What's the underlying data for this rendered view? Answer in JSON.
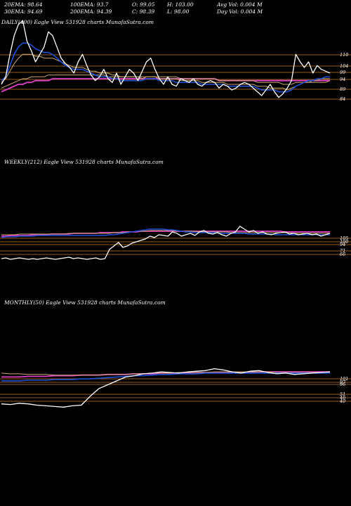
{
  "header": {
    "row1": [
      "20EMA: 98.64",
      "100EMA: 93.7",
      "O: 99.05",
      "H: 103.00",
      "Avg Vol: 0.004  M"
    ],
    "row2": [
      "30EMA: 94.69",
      "200EMA: 94.39",
      "C: 98.39",
      "L: 98.00",
      "Day Vol: 0.004  M"
    ]
  },
  "colors": {
    "background": "#000000",
    "price": "#ffffff",
    "ema_short": "#1f4fd6",
    "ema_200": "#e040c8",
    "ema_mid": "#c8a870",
    "level": "#c8782c",
    "text": "#ffffff"
  },
  "chart_data": [
    {
      "type": "line",
      "title": "DAILY(400) Eagle  View  531928 charts MunafaSutra.com",
      "y_levels": [
        "110",
        "104",
        "99",
        "94",
        "89",
        "84"
      ],
      "series": [
        {
          "role": "price",
          "values": [
            92,
            96,
            108,
            118,
            124,
            126,
            115,
            110,
            104,
            108,
            112,
            120,
            118,
            112,
            106,
            103,
            101,
            98,
            104,
            108,
            102,
            97,
            94,
            96,
            100,
            95,
            93,
            98,
            92,
            96,
            100,
            98,
            94,
            99,
            104,
            106,
            100,
            95,
            92,
            96,
            92,
            91,
            95,
            94,
            93,
            95,
            92,
            91,
            93,
            94,
            93,
            90,
            92,
            91,
            89,
            90,
            92,
            93,
            92,
            90,
            88,
            86,
            89,
            92,
            88,
            85,
            87,
            90,
            94,
            108,
            104,
            101,
            104,
            98,
            102,
            100,
            99,
            98
          ]
        },
        {
          "role": "ema-short",
          "values": [
            94,
            96,
            102,
            108,
            112,
            114,
            114,
            113,
            111,
            110,
            109,
            109,
            108,
            106,
            104,
            102,
            101,
            100,
            100,
            100,
            99,
            98,
            97,
            96,
            96,
            96,
            95,
            95,
            94,
            94,
            94,
            94,
            94,
            94,
            95,
            95,
            95,
            94,
            94,
            94,
            94,
            93,
            93,
            93,
            93,
            93,
            93,
            92,
            92,
            92,
            92,
            92,
            92,
            91,
            91,
            91,
            91,
            91,
            91,
            91,
            90,
            89,
            89,
            89,
            89,
            88,
            88,
            88,
            89,
            91,
            92,
            93,
            94,
            94,
            95,
            95,
            96,
            96
          ]
        },
        {
          "role": "ema-mid",
          "values": [
            93,
            95,
            99,
            103,
            106,
            108,
            108,
            108,
            107,
            107,
            106,
            106,
            106,
            105,
            104,
            103,
            102,
            101,
            101,
            101,
            100,
            99,
            99,
            98,
            98,
            98,
            97,
            97,
            96,
            96,
            96,
            96,
            96,
            95,
            96,
            96,
            96,
            95,
            95,
            95,
            95,
            95,
            94,
            94,
            94,
            94,
            94,
            93,
            93,
            93,
            93,
            93,
            93,
            92,
            92,
            92,
            92,
            92,
            92,
            92,
            91,
            91,
            91,
            90,
            90,
            90,
            90,
            89,
            90,
            91,
            92,
            93,
            93,
            94,
            94,
            95,
            95,
            95
          ]
        },
        {
          "role": "ema-long",
          "values": [
            90,
            91,
            92,
            93,
            94,
            95,
            95,
            96,
            96,
            96,
            96,
            97,
            97,
            97,
            97,
            97,
            97,
            97,
            97,
            97,
            97,
            97,
            97,
            97,
            97,
            96,
            96,
            96,
            96,
            96,
            96,
            96,
            96,
            96,
            96,
            96,
            96,
            96,
            96,
            96,
            96,
            96,
            95,
            95,
            95,
            95,
            95,
            95,
            95,
            95,
            95,
            94,
            94,
            94,
            94,
            94,
            94,
            94,
            94,
            94,
            93,
            93,
            93,
            93,
            93,
            93,
            92,
            92,
            92,
            93,
            93,
            93,
            93,
            93,
            93,
            93,
            93,
            94
          ]
        },
        {
          "role": "ema-200",
          "values": [
            88,
            89,
            90,
            91,
            92,
            92,
            93,
            93,
            94,
            94,
            94,
            94,
            95,
            95,
            95,
            95,
            95,
            95,
            95,
            95,
            95,
            95,
            95,
            95,
            95,
            95,
            95,
            95,
            95,
            95,
            95,
            95,
            95,
            95,
            95,
            95,
            95,
            95,
            95,
            95,
            95,
            95,
            95,
            95,
            95,
            95,
            95,
            95,
            95,
            95,
            95,
            94,
            94,
            94,
            94,
            94,
            94,
            94,
            94,
            94,
            94,
            94,
            94,
            94,
            94,
            94,
            94,
            94,
            94,
            94,
            94,
            94,
            94,
            94,
            94,
            94,
            94,
            94
          ]
        }
      ]
    },
    {
      "type": "line",
      "title": "WEEKLY(212) Eagle  View  531928 charts MunafaSutra.com",
      "y_levels": [
        "105",
        "100",
        "94",
        "71",
        "66"
      ],
      "series": [
        {
          "role": "price",
          "values": [
            62,
            63,
            61,
            62,
            63,
            62,
            61,
            62,
            61,
            62,
            63,
            62,
            61,
            62,
            63,
            64,
            62,
            63,
            62,
            61,
            62,
            63,
            61,
            62,
            75,
            80,
            85,
            78,
            80,
            84,
            86,
            88,
            90,
            94,
            92,
            96,
            95,
            94,
            100,
            98,
            94,
            96,
            98,
            95,
            100,
            102,
            98,
            97,
            99,
            96,
            94,
            98,
            100,
            108,
            104,
            100,
            102,
            98,
            100,
            97,
            96,
            98,
            99,
            100,
            97,
            98,
            96,
            97,
            98,
            96,
            97,
            94,
            96,
            98
          ]
        },
        {
          "role": "ema-short",
          "values": [
            92,
            93,
            93,
            93,
            94,
            94,
            94,
            94,
            95,
            95,
            95,
            95,
            95,
            95,
            95,
            95,
            95,
            95,
            95,
            95,
            95,
            95,
            95,
            95,
            96,
            96,
            97,
            98,
            99,
            100,
            101,
            102,
            103,
            104,
            104,
            104,
            104,
            103,
            103,
            102,
            101,
            100,
            100,
            99,
            99,
            99,
            99,
            99,
            99,
            98,
            98,
            98,
            98,
            98,
            98,
            97,
            97,
            97,
            97,
            97,
            97,
            96,
            96,
            96,
            96,
            96,
            96,
            96,
            96,
            96,
            96,
            96,
            96,
            96
          ]
        },
        {
          "role": "ema-mid",
          "values": [
            96,
            96,
            96,
            96,
            97,
            97,
            97,
            97,
            97,
            97,
            97,
            97,
            97,
            97,
            97,
            98,
            98,
            98,
            98,
            98,
            98,
            98,
            98,
            98,
            98,
            99,
            99,
            99,
            100,
            100,
            101,
            101,
            101,
            102,
            102,
            102,
            102,
            102,
            102,
            101,
            101,
            101,
            101,
            101,
            100,
            100,
            100,
            100,
            100,
            100,
            100,
            99,
            99,
            99,
            99,
            99,
            99,
            99,
            99,
            99,
            99,
            99,
            99,
            99,
            99,
            98,
            98,
            98,
            98,
            98,
            98,
            98,
            98,
            98
          ]
        },
        {
          "role": "ema-200",
          "values": [
            94,
            94,
            95,
            95,
            95,
            95,
            95,
            96,
            96,
            96,
            96,
            97,
            97,
            97,
            97,
            97,
            98,
            98,
            98,
            98,
            98,
            98,
            99,
            99,
            99,
            99,
            99,
            100,
            100,
            100,
            100,
            101,
            101,
            101,
            101,
            101,
            101,
            101,
            101,
            101,
            101,
            101,
            101,
            101,
            101,
            101,
            101,
            101,
            101,
            101,
            101,
            101,
            101,
            101,
            101,
            101,
            101,
            101,
            101,
            101,
            101,
            101,
            101,
            100,
            100,
            100,
            100,
            100,
            100,
            100,
            100,
            100,
            100,
            100
          ]
        }
      ]
    },
    {
      "type": "line",
      "title": "MONTHLY(50) Eagle  View  531928 charts MunafaSutra.com",
      "y_levels": [
        "101",
        "97",
        "96",
        "51",
        "46",
        "40"
      ],
      "series": [
        {
          "role": "price",
          "values": [
            48,
            47,
            49,
            48,
            46,
            45,
            44,
            43,
            45,
            46,
            60,
            72,
            78,
            84,
            90,
            92,
            95,
            96,
            98,
            97,
            96,
            98,
            99,
            100,
            103,
            101,
            98,
            96,
            99,
            100,
            97,
            95,
            96,
            94,
            95,
            96,
            97,
            98
          ]
        },
        {
          "role": "ema-short",
          "values": [
            84,
            84,
            84,
            85,
            85,
            85,
            86,
            86,
            86,
            87,
            87,
            88,
            89,
            90,
            91,
            92,
            92,
            93,
            94,
            94,
            95,
            95,
            95,
            96,
            96,
            96,
            96,
            96,
            96,
            96,
            96,
            96,
            96,
            96,
            96,
            96,
            96,
            96
          ]
        },
        {
          "role": "ema-mid",
          "values": [
            96,
            95,
            95,
            94,
            94,
            94,
            93,
            93,
            93,
            93,
            93,
            93,
            94,
            94,
            94,
            95,
            95,
            96,
            96,
            96,
            97,
            97,
            97,
            97,
            98,
            98,
            98,
            98,
            98,
            98,
            98,
            97,
            97,
            97,
            97,
            97,
            97,
            97
          ]
        },
        {
          "role": "ema-200",
          "values": [
            90,
            90,
            90,
            91,
            91,
            91,
            92,
            92,
            92,
            93,
            93,
            93,
            94,
            94,
            94,
            95,
            95,
            95,
            96,
            96,
            96,
            96,
            97,
            97,
            97,
            97,
            97,
            97,
            97,
            98,
            98,
            98,
            98,
            98,
            98,
            98,
            98,
            98
          ]
        }
      ]
    }
  ]
}
